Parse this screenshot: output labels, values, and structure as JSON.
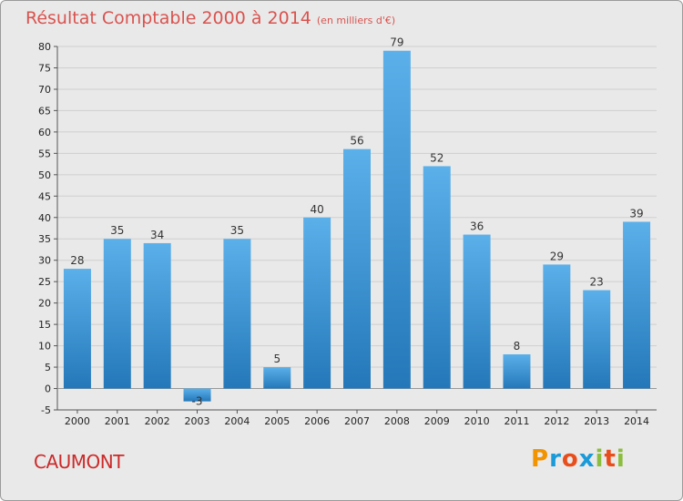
{
  "title": "Résultat Comptable 2000 à 2014",
  "subtitle": "(en milliers d'€)",
  "commune": "CAUMONT",
  "logo": {
    "letters": [
      "P",
      "r",
      "o",
      "x",
      "i",
      "t",
      "i"
    ],
    "colors": [
      "#f29400",
      "#1a9ad9",
      "#e84e1b",
      "#1a9ad9",
      "#8bbd3e",
      "#e84e1b",
      "#8bbd3e"
    ]
  },
  "colors": {
    "bar_light": "#5bb0ea",
    "bar_dark": "#2478b9",
    "title": "#d9534f",
    "commune": "#cc2a2a"
  },
  "chart_data": {
    "type": "bar",
    "title": "Résultat Comptable 2000 à 2014",
    "subtitle": "(en milliers d'€)",
    "categories": [
      "2000",
      "2001",
      "2002",
      "2003",
      "2004",
      "2005",
      "2006",
      "2007",
      "2008",
      "2009",
      "2010",
      "2011",
      "2012",
      "2013",
      "2014"
    ],
    "values": [
      28,
      35,
      34,
      -3,
      35,
      5,
      40,
      56,
      79,
      52,
      36,
      8,
      29,
      23,
      39
    ],
    "labels": [
      "28",
      "35",
      "34",
      "-3",
      "35",
      "5",
      "40",
      "56",
      "79",
      "52",
      "36",
      "8",
      "29",
      "23",
      "39"
    ],
    "ylim": [
      -5,
      80
    ],
    "yticks": [
      -5,
      0,
      5,
      10,
      15,
      20,
      25,
      30,
      35,
      40,
      45,
      50,
      55,
      60,
      65,
      70,
      75,
      80
    ],
    "xlabel": "",
    "ylabel": "",
    "grid": true
  }
}
